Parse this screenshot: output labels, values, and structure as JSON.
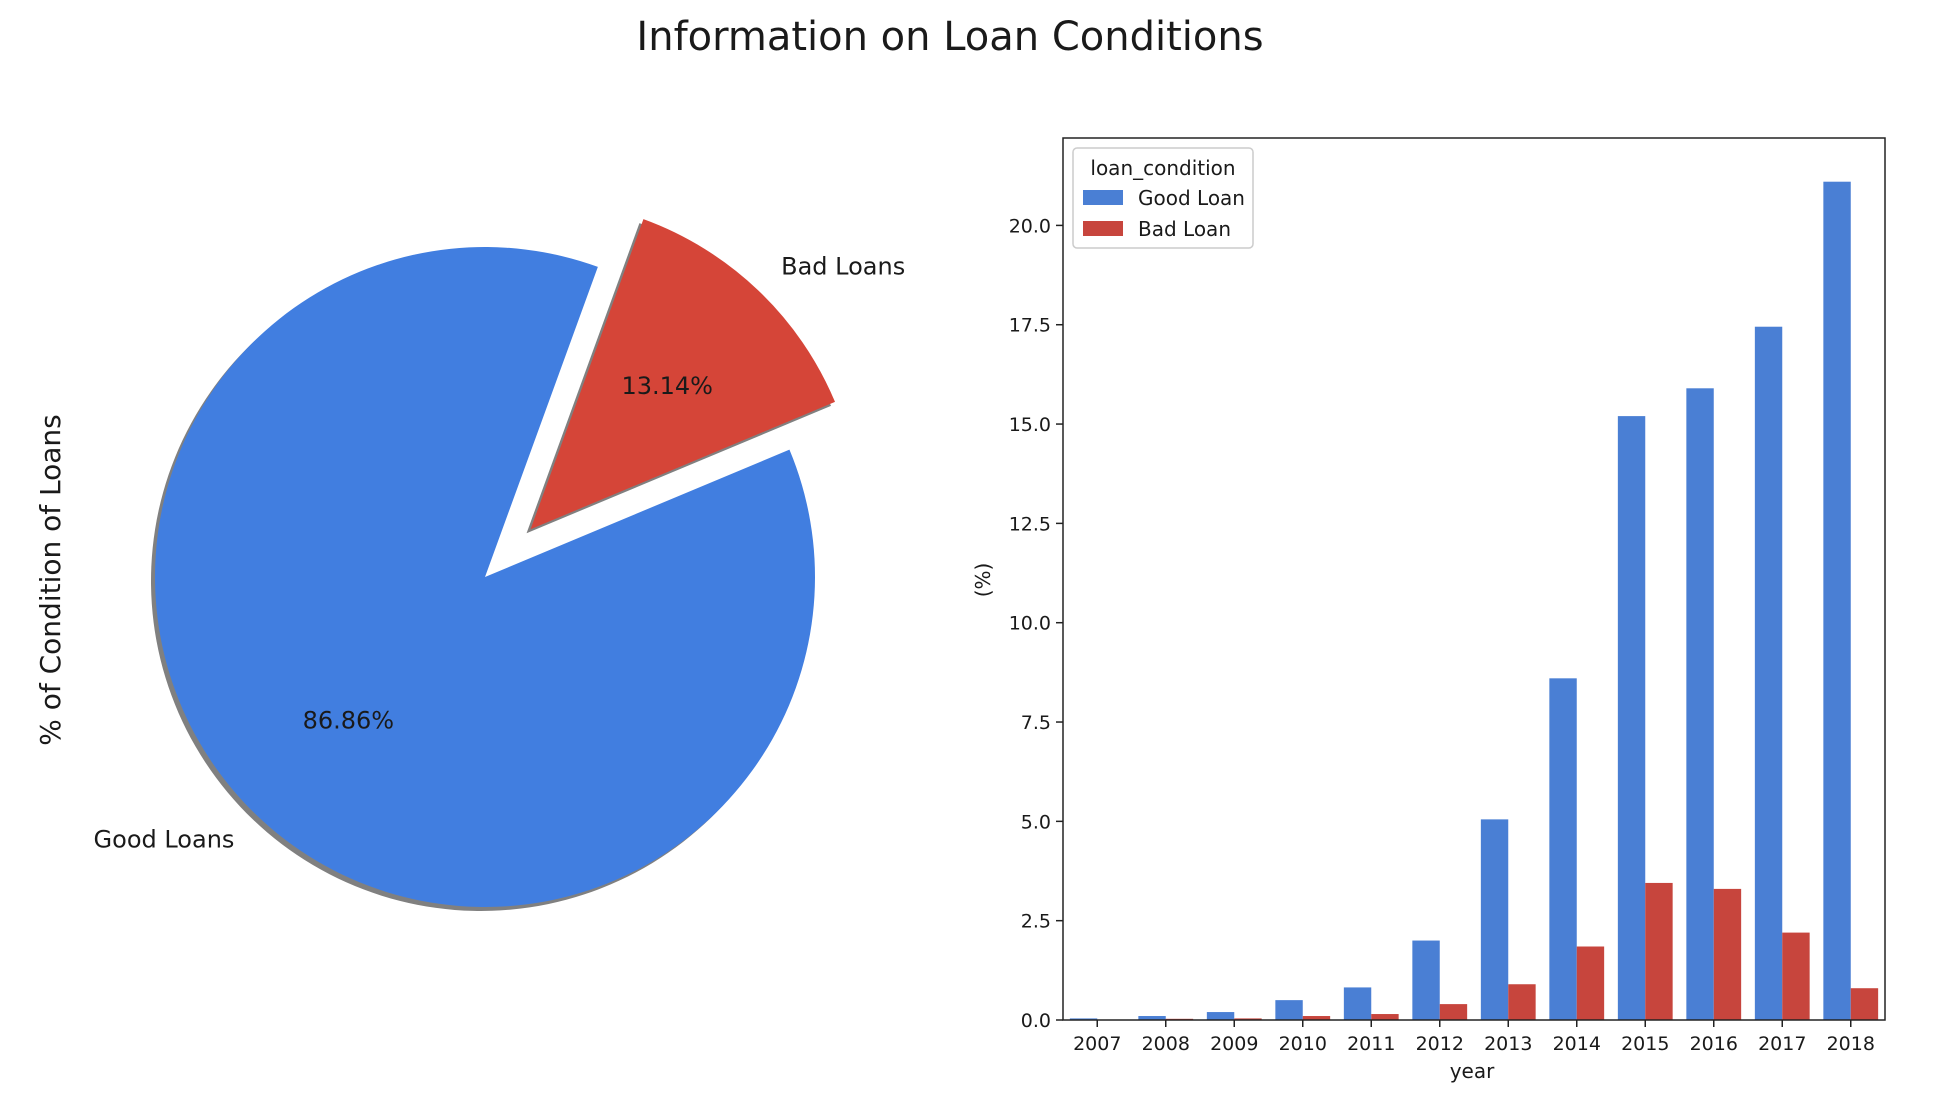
{
  "figure_title": "Information on Loan Conditions",
  "colors": {
    "good": "#417ee0",
    "bad": "#d54538",
    "good_bar": "#4a7fd4",
    "bad_bar": "#c7453d",
    "shadow": "#808080"
  },
  "chart_data": [
    {
      "type": "pie",
      "ylabel": "% of Condition of Loans",
      "slices": [
        {
          "label": "Good Loans",
          "value": 86.86,
          "pct_label": "86.86%",
          "explode": false
        },
        {
          "label": "Bad Loans",
          "value": 13.14,
          "pct_label": "13.14%",
          "explode": true
        }
      ],
      "shadow": true
    },
    {
      "type": "bar",
      "xlabel": "year",
      "ylabel": "(%)",
      "categories": [
        "2007",
        "2008",
        "2009",
        "2010",
        "2011",
        "2012",
        "2013",
        "2014",
        "2015",
        "2016",
        "2017",
        "2018"
      ],
      "series": [
        {
          "name": "Good Loan",
          "values": [
            0.04,
            0.1,
            0.2,
            0.5,
            0.82,
            2.0,
            5.05,
            8.6,
            15.2,
            15.9,
            17.45,
            21.1
          ]
        },
        {
          "name": "Bad Loan",
          "values": [
            0.0,
            0.03,
            0.04,
            0.1,
            0.15,
            0.4,
            0.9,
            1.85,
            3.45,
            3.3,
            2.2,
            0.8
          ]
        }
      ],
      "ylim": [
        0,
        22.2
      ],
      "yticks": [
        "0.0",
        "2.5",
        "5.0",
        "7.5",
        "10.0",
        "12.5",
        "15.0",
        "17.5",
        "20.0"
      ],
      "legend": {
        "title": "loan_condition",
        "placement": "upper-left"
      },
      "grid": false
    }
  ]
}
